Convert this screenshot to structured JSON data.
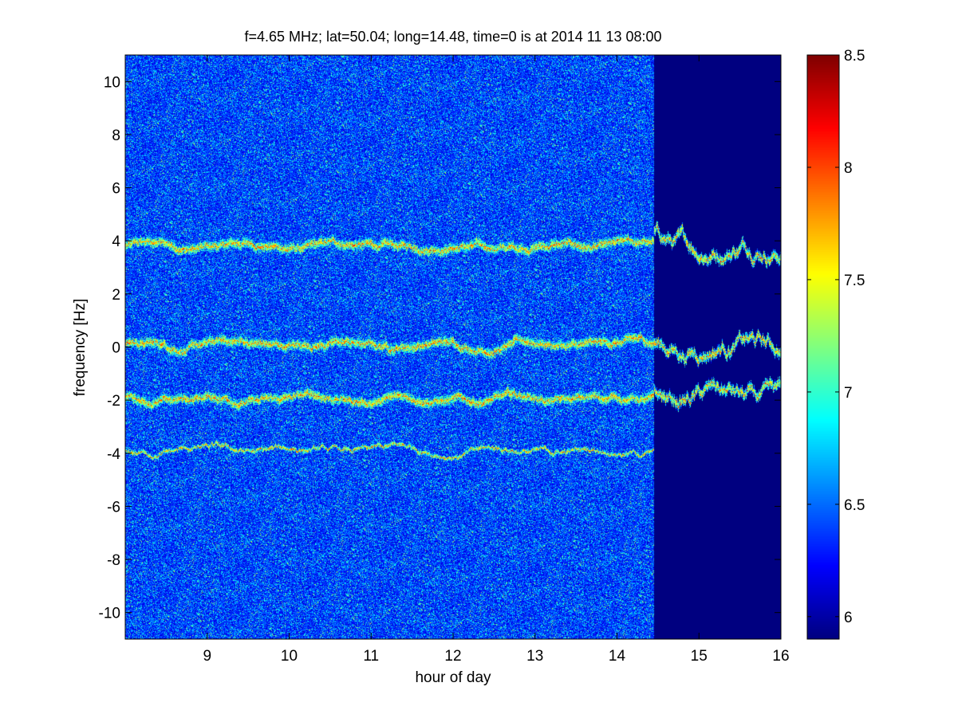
{
  "chart_data": {
    "type": "heatmap",
    "title": "f=4.65 MHz;  lat=50.04; long=14.48, time=0 is at 2014 11 13 08:00",
    "xlabel": "hour of day",
    "ylabel": "frequency [Hz]",
    "xlim": [
      8.0,
      16.0
    ],
    "ylim": [
      -11.0,
      11.0
    ],
    "x_ticks": [
      "9",
      "10",
      "11",
      "12",
      "13",
      "14",
      "15",
      "16"
    ],
    "x_tick_values": [
      9,
      10,
      11,
      12,
      13,
      14,
      15,
      16
    ],
    "y_ticks": [
      "10",
      "8",
      "6",
      "4",
      "2",
      "0",
      "-2",
      "-4",
      "-6",
      "-8",
      "-10"
    ],
    "y_tick_values": [
      10,
      8,
      6,
      4,
      2,
      0,
      -2,
      -4,
      -6,
      -8,
      -10
    ],
    "colorbar": {
      "colormap": "jet",
      "range": [
        5.9,
        8.5
      ],
      "ticks": [
        "6",
        "6.5",
        "7",
        "7.5",
        "8",
        "8.5"
      ],
      "tick_values": [
        6,
        6.5,
        7,
        7.5,
        8,
        8.5
      ]
    },
    "background_level": 6.3,
    "noise_cutoff_hour": 14.45,
    "traces": [
      {
        "center_hz": 3.8,
        "start_hour": 8.0,
        "end_hour": 16.0
      },
      {
        "center_hz": 0.1,
        "start_hour": 8.0,
        "end_hour": 16.0
      },
      {
        "center_hz": -1.95,
        "start_hour": 8.0,
        "end_hour": 16.0
      },
      {
        "center_hz": -3.9,
        "start_hour": 8.0,
        "end_hour": 14.45
      }
    ],
    "grid": false
  }
}
